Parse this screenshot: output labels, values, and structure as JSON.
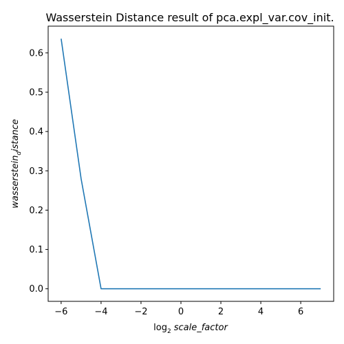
{
  "chart_data": {
    "type": "line",
    "title": "Wasserstein Distance result of pca.expl_var.cov_init.",
    "xlabel": {
      "prefix": "log",
      "subscript": "2",
      "italic": "scale_factor"
    },
    "ylabel": {
      "italic": "wasserstein",
      "subscript": "d",
      "italic_tail": "istance"
    },
    "xlim": [
      -6.65,
      7.65
    ],
    "ylim": [
      -0.032,
      0.668
    ],
    "x_ticks": [
      -6,
      -4,
      -2,
      0,
      2,
      4,
      6
    ],
    "x_tick_labels": [
      "−6",
      "−4",
      "−2",
      "0",
      "2",
      "4",
      "6"
    ],
    "y_ticks": [
      0.0,
      0.1,
      0.2,
      0.3,
      0.4,
      0.5,
      0.6
    ],
    "y_tick_labels": [
      "0.0",
      "0.1",
      "0.2",
      "0.3",
      "0.4",
      "0.5",
      "0.6"
    ],
    "grid": false,
    "series": [
      {
        "color": "#1f77b4",
        "x": [
          -6,
          -5,
          -4,
          -3,
          -2,
          -1,
          0,
          1,
          2,
          3,
          4,
          5,
          6,
          7
        ],
        "y": [
          0.636,
          0.28,
          0.0,
          0.0,
          0.0,
          0.0,
          0.0,
          0.0,
          0.0,
          0.0,
          0.0,
          0.0,
          0.0,
          0.0
        ]
      }
    ]
  }
}
